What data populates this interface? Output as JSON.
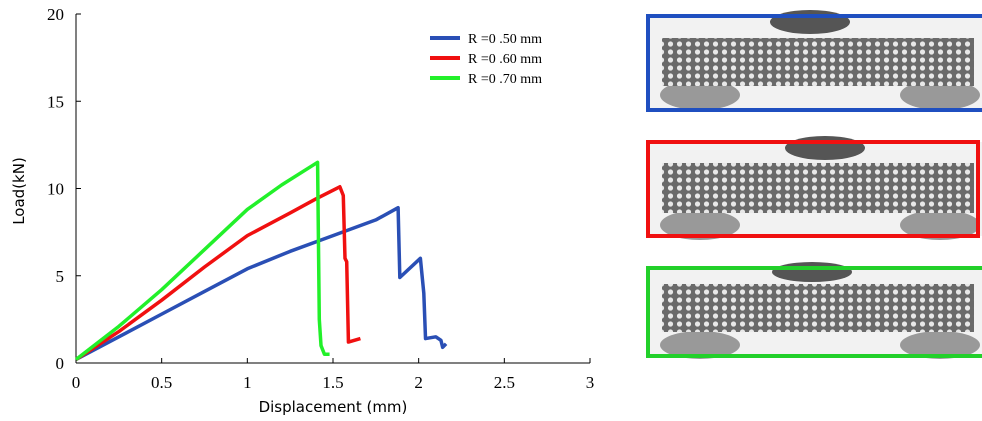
{
  "chart_data": {
    "type": "line",
    "x_label": "Displacement (mm)",
    "y_label": "Load(kN)",
    "xlim": [
      0,
      3
    ],
    "ylim": [
      0,
      20
    ],
    "xticks": [
      0,
      0.5,
      1,
      1.5,
      2,
      2.5,
      3
    ],
    "yticks": [
      0,
      5,
      10,
      15,
      20
    ],
    "grid": false,
    "legend": "upper right",
    "series": [
      {
        "name": "R =0 .50 mm",
        "color": "#2a4fb5",
        "x": [
          0,
          0.25,
          0.5,
          0.75,
          1,
          1.25,
          1.5,
          1.75,
          1.88,
          1.89,
          2.01,
          2.03,
          2.04,
          2.1,
          2.13,
          2.14,
          2.16
        ],
        "values": [
          0.2,
          1.5,
          2.8,
          4.1,
          5.4,
          6.4,
          7.3,
          8.2,
          8.9,
          4.9,
          6.0,
          4.0,
          1.4,
          1.5,
          1.3,
          0.9,
          1.1
        ]
      },
      {
        "name": "R =0 .60 mm",
        "color": "#f01010",
        "x": [
          0,
          0.25,
          0.5,
          0.75,
          1,
          1.25,
          1.4,
          1.54,
          1.56,
          1.57,
          1.58,
          1.59,
          1.66
        ],
        "values": [
          0.2,
          1.8,
          3.6,
          5.5,
          7.3,
          8.6,
          9.4,
          10.1,
          9.6,
          6.0,
          5.8,
          1.2,
          1.4
        ]
      },
      {
        "name": "R =0 .70 mm",
        "color": "#22f02a",
        "x": [
          0,
          0.25,
          0.5,
          0.75,
          1,
          1.2,
          1.41,
          1.42,
          1.43,
          1.45,
          1.48
        ],
        "values": [
          0.2,
          2.1,
          4.2,
          6.5,
          8.8,
          10.2,
          11.5,
          2.5,
          1.0,
          0.5,
          0.5
        ]
      }
    ]
  }
}
